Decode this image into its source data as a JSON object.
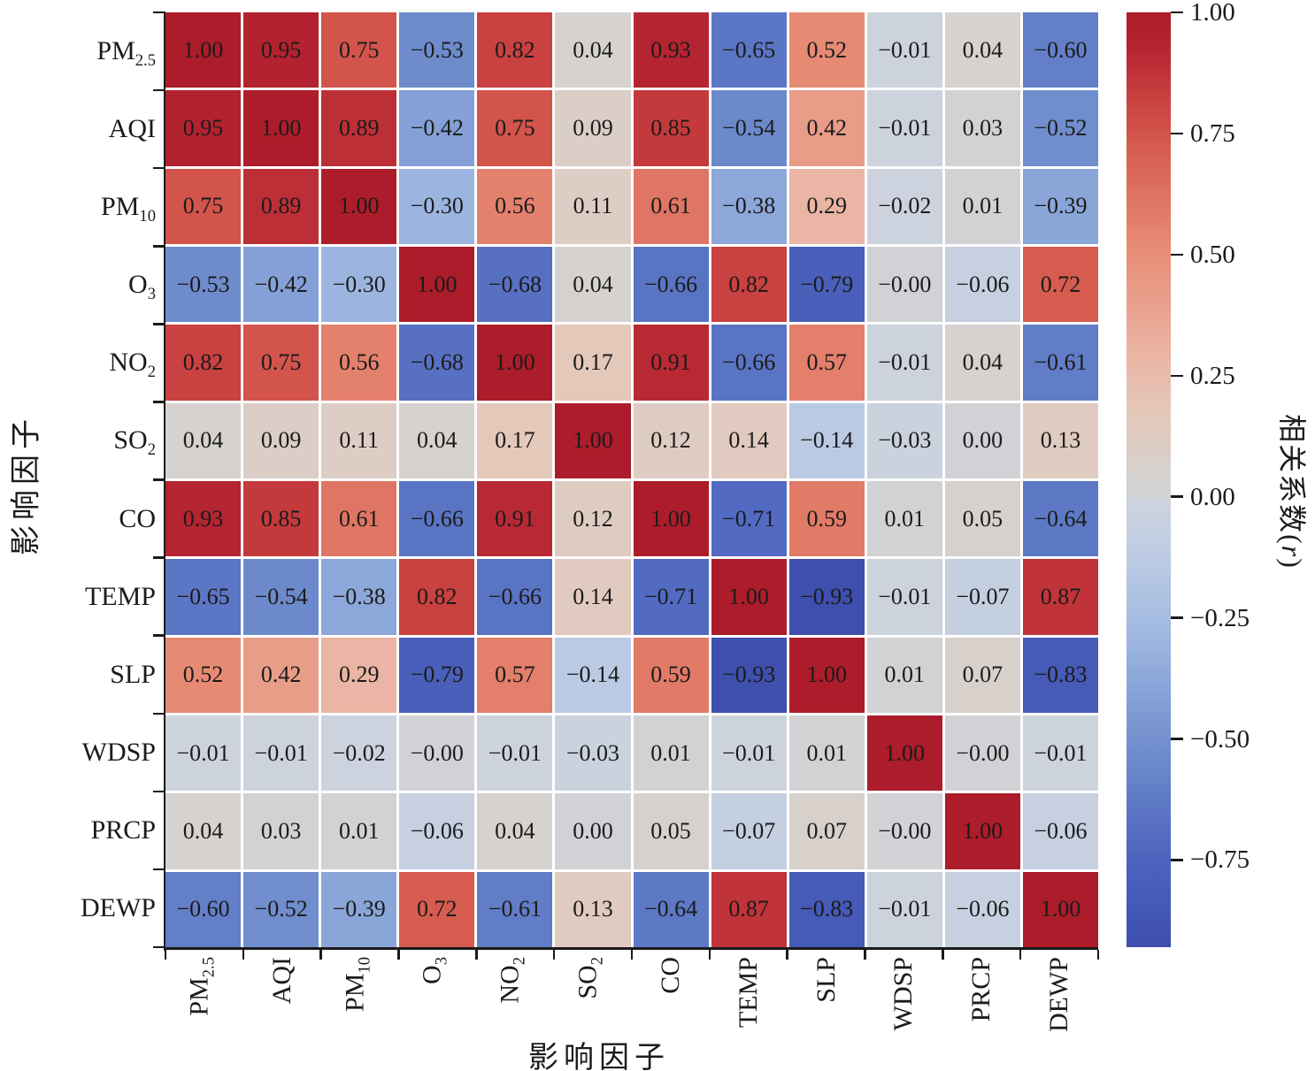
{
  "figure": {
    "type": "correlation-heatmap"
  },
  "chart_data": {
    "type": "heatmap",
    "xlabel": "影响因子",
    "ylabel": "影响因子",
    "categories": [
      "PM_{2.5}",
      "AQI",
      "PM_{10}",
      "O_{3}",
      "NO_{2}",
      "SO_{2}",
      "CO",
      "TEMP",
      "SLP",
      "WDSP",
      "PRCP",
      "DEWP"
    ],
    "matrix": [
      [
        "1.00",
        "0.95",
        "0.75",
        "-0.53",
        "0.82",
        "0.04",
        "0.93",
        "-0.65",
        "0.52",
        "-0.01",
        "0.04",
        "-0.60"
      ],
      [
        "0.95",
        "1.00",
        "0.89",
        "-0.42",
        "0.75",
        "0.09",
        "0.85",
        "-0.54",
        "0.42",
        "-0.01",
        "0.03",
        "-0.52"
      ],
      [
        "0.75",
        "0.89",
        "1.00",
        "-0.30",
        "0.56",
        "0.11",
        "0.61",
        "-0.38",
        "0.29",
        "-0.02",
        "0.01",
        "-0.39"
      ],
      [
        "-0.53",
        "-0.42",
        "-0.30",
        "1.00",
        "-0.68",
        "0.04",
        "-0.66",
        "0.82",
        "-0.79",
        "-0.00",
        "-0.06",
        "0.72"
      ],
      [
        "0.82",
        "0.75",
        "0.56",
        "-0.68",
        "1.00",
        "0.17",
        "0.91",
        "-0.66",
        "0.57",
        "-0.01",
        "0.04",
        "-0.61"
      ],
      [
        "0.04",
        "0.09",
        "0.11",
        "0.04",
        "0.17",
        "1.00",
        "0.12",
        "0.14",
        "-0.14",
        "-0.03",
        "0.00",
        "0.13"
      ],
      [
        "0.93",
        "0.85",
        "0.61",
        "-0.66",
        "0.91",
        "0.12",
        "1.00",
        "-0.71",
        "0.59",
        "0.01",
        "0.05",
        "-0.64"
      ],
      [
        "-0.65",
        "-0.54",
        "-0.38",
        "0.82",
        "-0.66",
        "0.14",
        "-0.71",
        "1.00",
        "-0.93",
        "-0.01",
        "-0.07",
        "0.87"
      ],
      [
        "0.52",
        "0.42",
        "0.29",
        "-0.79",
        "0.57",
        "-0.14",
        "0.59",
        "-0.93",
        "1.00",
        "0.01",
        "0.07",
        "-0.83"
      ],
      [
        "-0.01",
        "-0.01",
        "-0.02",
        "-0.00",
        "-0.01",
        "-0.03",
        "0.01",
        "-0.01",
        "0.01",
        "1.00",
        "-0.00",
        "-0.01"
      ],
      [
        "0.04",
        "0.03",
        "0.01",
        "-0.06",
        "0.04",
        "0.00",
        "0.05",
        "-0.07",
        "0.07",
        "-0.00",
        "1.00",
        "-0.06"
      ],
      [
        "-0.60",
        "-0.52",
        "-0.39",
        "0.72",
        "-0.61",
        "0.13",
        "-0.64",
        "0.87",
        "-0.83",
        "-0.01",
        "-0.06",
        "1.00"
      ]
    ],
    "colorbar": {
      "label": "相关系数(*r*)",
      "ticks": [
        1.0,
        0.75,
        0.5,
        0.25,
        0.0,
        -0.25,
        -0.5,
        -0.75
      ],
      "vmin": -0.93,
      "vmax": 1.0
    },
    "colormap_stops": [
      [
        -0.93,
        "#3E4FAE"
      ],
      [
        -0.75,
        "#4C63BE"
      ],
      [
        -0.53,
        "#6E8CCC"
      ],
      [
        -0.3,
        "#9CB5E0"
      ],
      [
        -0.14,
        "#BACAE4"
      ],
      [
        -0.01,
        "#CDD3DD"
      ],
      [
        0.0,
        "#D1D2D6"
      ],
      [
        0.04,
        "#D5D2CF"
      ],
      [
        0.17,
        "#E4C8BA"
      ],
      [
        0.29,
        "#EAB5A4"
      ],
      [
        0.52,
        "#E78A74"
      ],
      [
        0.72,
        "#D65C50"
      ],
      [
        0.82,
        "#C94140"
      ],
      [
        0.93,
        "#B52431"
      ],
      [
        1.0,
        "#AD1C2A"
      ]
    ],
    "colors": {
      "background": "#ffffff",
      "grid_lines": "#ffffff",
      "axis": "#1a1a1a",
      "cell_text": "#1b1b1b"
    }
  }
}
